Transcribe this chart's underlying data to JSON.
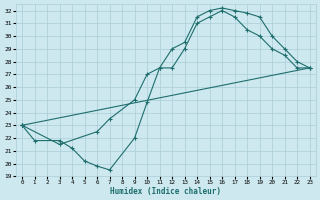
{
  "xlabel": "Humidex (Indice chaleur)",
  "xlim": [
    -0.5,
    23.5
  ],
  "ylim": [
    19,
    32.5
  ],
  "yticks": [
    19,
    20,
    21,
    22,
    23,
    24,
    25,
    26,
    27,
    28,
    29,
    30,
    31,
    32
  ],
  "xticks": [
    0,
    1,
    2,
    3,
    4,
    5,
    6,
    7,
    8,
    9,
    10,
    11,
    12,
    13,
    14,
    15,
    16,
    17,
    18,
    19,
    20,
    21,
    22,
    23
  ],
  "bg_color": "#cde8ee",
  "grid_color": "#aacdd6",
  "line_color": "#1e6e6e",
  "lines": [
    {
      "x": [
        0,
        1,
        3,
        4,
        5,
        6,
        7,
        9,
        10,
        11,
        12,
        13,
        14,
        15,
        16,
        17,
        18,
        19,
        20,
        21,
        22,
        23
      ],
      "y": [
        23,
        21.8,
        21.8,
        21.2,
        20.2,
        19.8,
        19.5,
        22.0,
        24.8,
        27.5,
        29.0,
        29.5,
        31.5,
        32.0,
        32.2,
        32.0,
        31.8,
        31.5,
        30.0,
        29.0,
        28.0,
        27.5
      ]
    },
    {
      "x": [
        0,
        3,
        6,
        7,
        9,
        10,
        11,
        12,
        13,
        14,
        15,
        16,
        17,
        18,
        19,
        20,
        21,
        22,
        23
      ],
      "y": [
        23,
        21.5,
        22.5,
        23.5,
        25.0,
        27.0,
        27.5,
        27.5,
        29.0,
        31.0,
        31.5,
        32.0,
        31.5,
        30.5,
        30.0,
        29.0,
        28.5,
        27.5,
        27.5
      ]
    },
    {
      "x": [
        0,
        23
      ],
      "y": [
        23,
        27.5
      ]
    }
  ]
}
